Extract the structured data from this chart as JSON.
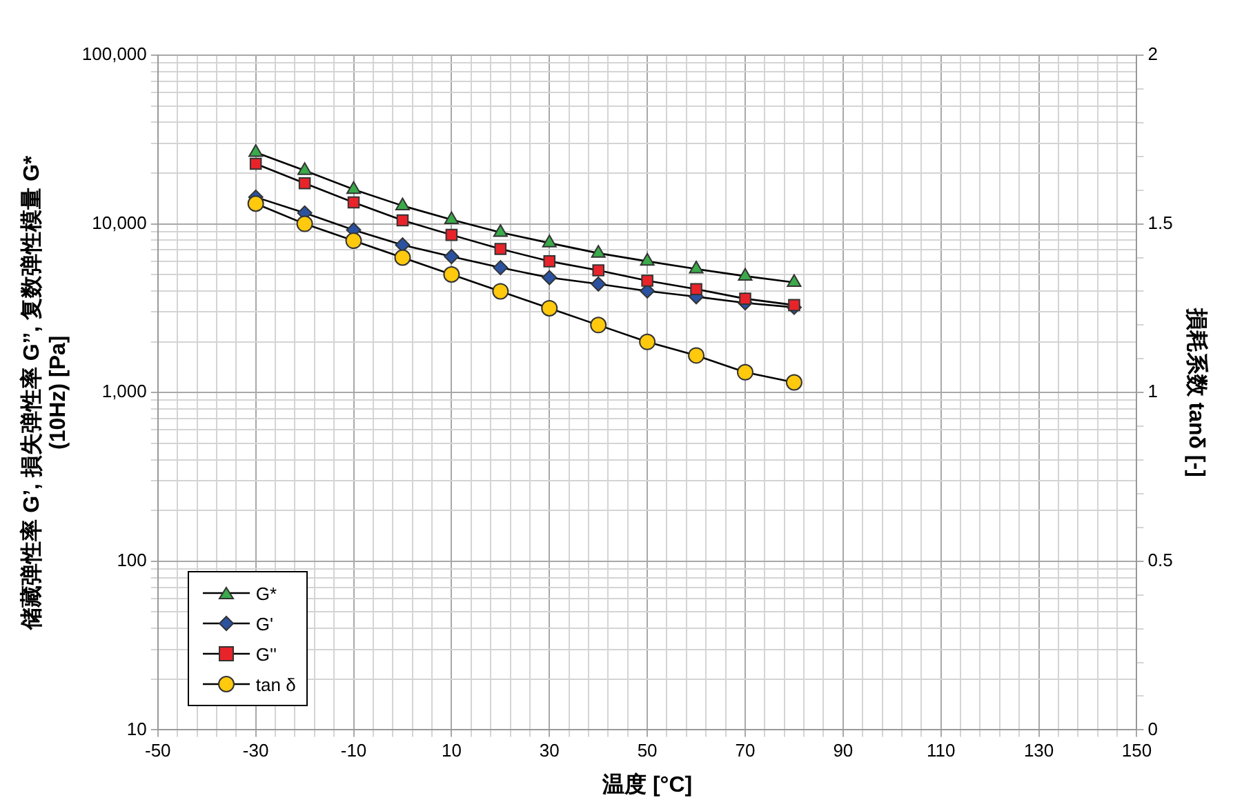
{
  "chart_data": {
    "type": "line",
    "xlabel": "温度 [°C]",
    "ylabel": "储藏弹性率 G’, 損失弹性率 G’’, 复数弹性模量 G*\n(10Hz) [Pa]",
    "y2label": "損耗系数 tanδ [-]",
    "x": [
      -30,
      -20,
      -10,
      0,
      10,
      20,
      30,
      40,
      50,
      60,
      70,
      80
    ],
    "series": [
      {
        "name": "G*",
        "color": "#3aaa4a",
        "marker": "triangle",
        "values": [
          26500,
          20700,
          16000,
          12800,
          10600,
          8900,
          7700,
          6700,
          6000,
          5400,
          4900,
          4500
        ]
      },
      {
        "name": "G'",
        "color": "#2a52a0",
        "marker": "diamond",
        "values": [
          14400,
          11600,
          9200,
          7500,
          6400,
          5500,
          4800,
          4400,
          4000,
          3700,
          3400,
          3200
        ]
      },
      {
        "name": "G''",
        "color": "#e8242a",
        "marker": "square",
        "values": [
          22700,
          17400,
          13400,
          10500,
          8600,
          7100,
          6000,
          5300,
          4600,
          4100,
          3600,
          3300
        ]
      },
      {
        "name": "tan δ",
        "color": "#ffc90e",
        "marker": "circle",
        "axis": "y2",
        "values": [
          1.56,
          1.5,
          1.45,
          1.4,
          1.35,
          1.3,
          1.25,
          1.2,
          1.15,
          1.11,
          1.06,
          1.03
        ]
      }
    ],
    "xlim": [
      -50,
      150
    ],
    "xticks": [
      -50,
      {
        "value": -46,
        "label": null
      },
      {
        "value": -42,
        "label": null
      },
      {
        "value": -38,
        "label": null
      },
      {
        "value": -34,
        "label": null
      },
      -30,
      {
        "value": -26,
        "label": null
      },
      {
        "value": -22,
        "label": null
      },
      {
        "value": -18,
        "label": null
      },
      {
        "value": -14,
        "label": null
      },
      -10,
      {
        "value": -6,
        "label": null
      },
      {
        "value": -2,
        "label": null
      },
      {
        "value": 2,
        "label": null
      },
      {
        "value": 6,
        "label": null
      },
      10,
      {
        "value": 14,
        "label": null
      },
      {
        "value": 18,
        "label": null
      },
      {
        "value": 22,
        "label": null
      },
      {
        "value": 26,
        "label": null
      },
      30,
      {
        "value": 34,
        "label": null
      },
      {
        "value": 38,
        "label": null
      },
      {
        "value": 42,
        "label": null
      },
      {
        "value": 46,
        "label": null
      },
      50,
      {
        "value": 54,
        "label": null
      },
      {
        "value": 58,
        "label": null
      },
      {
        "value": 62,
        "label": null
      },
      {
        "value": 66,
        "label": null
      },
      70,
      {
        "value": 74,
        "label": null
      },
      {
        "value": 78,
        "label": null
      },
      {
        "value": 82,
        "label": null
      },
      {
        "value": 86,
        "label": null
      },
      90,
      {
        "value": 94,
        "label": null
      },
      {
        "value": 98,
        "label": null
      },
      {
        "value": 102,
        "label": null
      },
      {
        "value": 106,
        "label": null
      },
      110,
      {
        "value": 114,
        "label": null
      },
      {
        "value": 118,
        "label": null
      },
      {
        "value": 122,
        "label": null
      },
      {
        "value": 126,
        "label": null
      },
      130,
      {
        "value": 134,
        "label": null
      },
      {
        "value": 138,
        "label": null
      },
      {
        "value": 142,
        "label": null
      },
      {
        "value": 146,
        "label": null
      },
      150
    ],
    "ylim": [
      10,
      100000
    ],
    "yticks": [
      10,
      {
        "value": 20,
        "label": null
      },
      {
        "value": 30,
        "label": null
      },
      {
        "value": 40,
        "label": null
      },
      {
        "value": 50,
        "label": null
      },
      {
        "value": 60,
        "label": null
      },
      {
        "value": 70,
        "label": null
      },
      {
        "value": 80,
        "label": null
      },
      {
        "value": 90,
        "label": null
      },
      100,
      {
        "value": 200,
        "label": null
      },
      {
        "value": 300,
        "label": null
      },
      {
        "value": 400,
        "label": null
      },
      {
        "value": 500,
        "label": null
      },
      {
        "value": 600,
        "label": null
      },
      {
        "value": 700,
        "label": null
      },
      {
        "value": 800,
        "label": null
      },
      {
        "value": 900,
        "label": null
      },
      {
        "value": 1000,
        "label": "1,000"
      },
      {
        "value": 2000,
        "label": null
      },
      {
        "value": 3000,
        "label": null
      },
      {
        "value": 4000,
        "label": null
      },
      {
        "value": 5000,
        "label": null
      },
      {
        "value": 6000,
        "label": null
      },
      {
        "value": 7000,
        "label": null
      },
      {
        "value": 8000,
        "label": null
      },
      {
        "value": 9000,
        "label": null
      },
      {
        "value": 10000,
        "label": "10,000"
      },
      {
        "value": 20000,
        "label": null
      },
      {
        "value": 30000,
        "label": null
      },
      {
        "value": 40000,
        "label": null
      },
      {
        "value": 50000,
        "label": null
      },
      {
        "value": 60000,
        "label": null
      },
      {
        "value": 70000,
        "label": null
      },
      {
        "value": 80000,
        "label": null
      },
      {
        "value": 90000,
        "label": null
      },
      {
        "value": 100000,
        "label": "100,000"
      }
    ],
    "y2lim": [
      0,
      2
    ],
    "y2ticks": [
      0,
      {
        "value": 0.1,
        "label": null
      },
      {
        "value": 0.2,
        "label": null
      },
      {
        "value": 0.3,
        "label": null
      },
      {
        "value": 0.4,
        "label": null
      },
      0.5,
      {
        "value": 0.6,
        "label": null
      },
      {
        "value": 0.7,
        "label": null
      },
      {
        "value": 0.8,
        "label": null
      },
      {
        "value": 0.9,
        "label": null
      },
      1,
      {
        "value": 1.1,
        "label": null
      },
      {
        "value": 1.2,
        "label": null
      },
      {
        "value": 1.3,
        "label": null
      },
      {
        "value": 1.4,
        "label": null
      },
      1.5,
      {
        "value": 1.6,
        "label": null
      },
      {
        "value": 1.7,
        "label": null
      },
      {
        "value": 1.8,
        "label": null
      },
      {
        "value": 1.9,
        "label": null
      },
      2
    ],
    "log": "y",
    "grid": true,
    "legend": "bottom left",
    "line_style": "solid"
  }
}
